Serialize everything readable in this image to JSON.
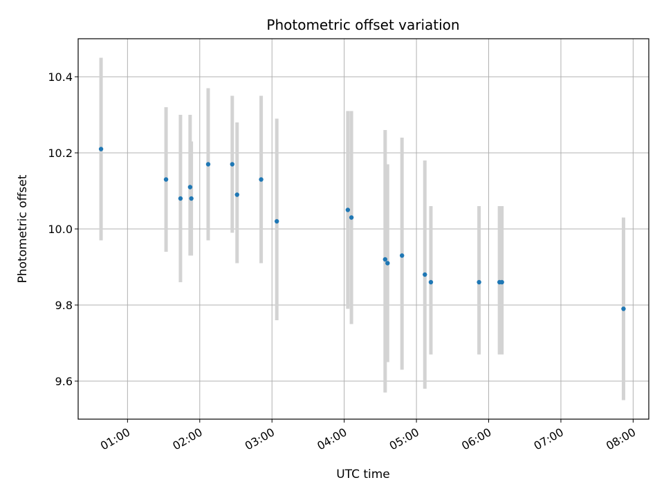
{
  "chart_data": {
    "type": "scatter",
    "title": "Photometric offset variation",
    "xlabel": "UTC time",
    "ylabel": "Photometric offset",
    "x_is_time": true,
    "xlim": [
      "00:19",
      "08:13"
    ],
    "ylim": [
      9.5,
      10.5
    ],
    "x_ticks": [
      "01:00",
      "02:00",
      "03:00",
      "04:00",
      "05:00",
      "06:00",
      "07:00",
      "08:00"
    ],
    "y_ticks": [
      "9.6",
      "9.8",
      "10.0",
      "10.2",
      "10.4"
    ],
    "grid": true,
    "point_color": "#1f77b4",
    "errorbar_color": "#d3d3d3",
    "points": [
      {
        "x": "00:38",
        "y": 10.21,
        "ylow": 9.97,
        "yhigh": 10.45
      },
      {
        "x": "01:32",
        "y": 10.13,
        "ylow": 9.94,
        "yhigh": 10.32
      },
      {
        "x": "01:44",
        "y": 10.08,
        "ylow": 9.86,
        "yhigh": 10.3
      },
      {
        "x": "01:52",
        "y": 10.11,
        "ylow": 9.93,
        "yhigh": 10.3
      },
      {
        "x": "01:53",
        "y": 10.08,
        "ylow": 9.93,
        "yhigh": 10.23
      },
      {
        "x": "02:07",
        "y": 10.17,
        "ylow": 9.97,
        "yhigh": 10.37
      },
      {
        "x": "02:27",
        "y": 10.17,
        "ylow": 9.99,
        "yhigh": 10.35
      },
      {
        "x": "02:31",
        "y": 10.09,
        "ylow": 9.91,
        "yhigh": 10.28
      },
      {
        "x": "02:51",
        "y": 10.13,
        "ylow": 9.91,
        "yhigh": 10.35
      },
      {
        "x": "03:04",
        "y": 10.02,
        "ylow": 9.76,
        "yhigh": 10.29
      },
      {
        "x": "04:03",
        "y": 10.05,
        "ylow": 9.79,
        "yhigh": 10.31
      },
      {
        "x": "04:06",
        "y": 10.03,
        "ylow": 9.75,
        "yhigh": 10.31
      },
      {
        "x": "04:34",
        "y": 9.92,
        "ylow": 9.57,
        "yhigh": 10.26
      },
      {
        "x": "04:36",
        "y": 9.91,
        "ylow": 9.65,
        "yhigh": 10.17
      },
      {
        "x": "04:48",
        "y": 9.93,
        "ylow": 9.63,
        "yhigh": 10.24
      },
      {
        "x": "05:07",
        "y": 9.88,
        "ylow": 9.58,
        "yhigh": 10.18
      },
      {
        "x": "05:12",
        "y": 9.86,
        "ylow": 9.67,
        "yhigh": 10.06
      },
      {
        "x": "05:52",
        "y": 9.86,
        "ylow": 9.67,
        "yhigh": 10.06
      },
      {
        "x": "06:09",
        "y": 9.86,
        "ylow": 9.67,
        "yhigh": 10.06
      },
      {
        "x": "06:11",
        "y": 9.86,
        "ylow": 9.67,
        "yhigh": 10.06
      },
      {
        "x": "07:52",
        "y": 9.79,
        "ylow": 9.55,
        "yhigh": 10.03
      }
    ]
  }
}
